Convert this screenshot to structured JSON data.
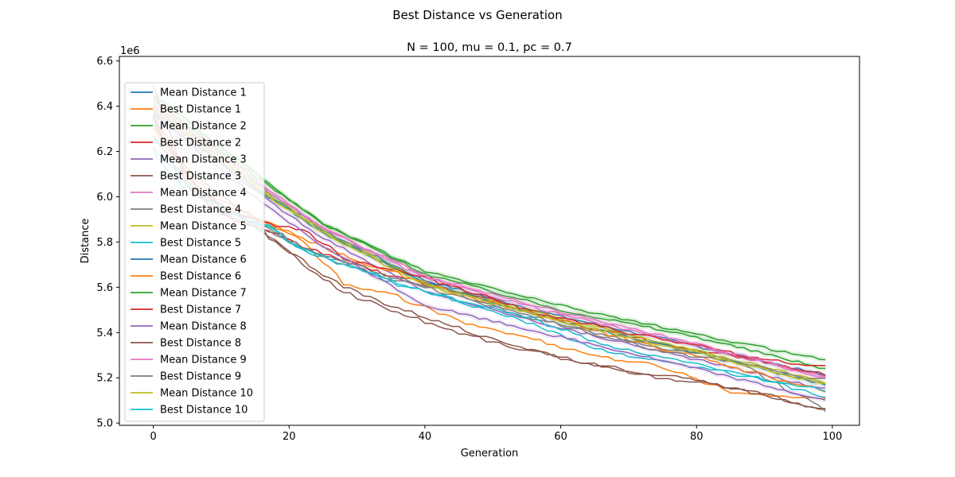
{
  "chart_data": {
    "type": "line",
    "title": "Best Distance vs Generation",
    "subtitle": "N = 100, mu = 0.1, pc = 0.7",
    "xlabel": "Generation",
    "ylabel": "Distance",
    "y_offset_label": "1e6",
    "xlim": [
      -5,
      104
    ],
    "ylim": [
      4.99,
      6.62
    ],
    "x_ticks": [
      0,
      20,
      40,
      60,
      80,
      100
    ],
    "y_ticks": [
      5.0,
      5.2,
      5.4,
      5.6,
      5.8,
      6.0,
      6.2,
      6.4,
      6.6
    ],
    "y_tick_labels": [
      "5.0",
      "5.2",
      "5.4",
      "5.6",
      "5.8",
      "6.0",
      "6.2",
      "6.4",
      "6.6"
    ],
    "grid": false,
    "legend_position": "upper-left",
    "series": [
      {
        "name": "Mean Distance 1",
        "type": "mean",
        "color": "#1f77b4",
        "x": [
          0,
          10,
          17,
          25,
          40,
          60,
          80,
          99
        ],
        "y": [
          6.4,
          6.18,
          6.02,
          5.85,
          5.63,
          5.47,
          5.34,
          5.21
        ]
      },
      {
        "name": "Best Distance 1",
        "type": "best",
        "color": "#ff7f0e",
        "x": [
          0,
          5,
          10,
          17,
          22,
          28,
          35,
          45,
          55,
          65,
          75,
          85,
          99
        ],
        "y": [
          6.3,
          6.1,
          5.98,
          5.88,
          5.8,
          5.62,
          5.57,
          5.45,
          5.38,
          5.3,
          5.25,
          5.14,
          5.11
        ]
      },
      {
        "name": "Mean Distance 2",
        "type": "mean",
        "color": "#2ca02c",
        "x": [
          0,
          10,
          17,
          25,
          40,
          60,
          80,
          99
        ],
        "y": [
          6.43,
          6.2,
          6.05,
          5.88,
          5.66,
          5.5,
          5.38,
          5.24
        ]
      },
      {
        "name": "Best Distance 2",
        "type": "best",
        "color": "#d62728",
        "x": [
          0,
          5,
          10,
          17,
          22,
          28,
          35,
          45,
          55,
          65,
          75,
          85,
          99
        ],
        "y": [
          6.5,
          6.05,
          5.92,
          5.84,
          5.78,
          5.72,
          5.65,
          5.58,
          5.5,
          5.42,
          5.35,
          5.3,
          5.25
        ]
      },
      {
        "name": "Mean Distance 3",
        "type": "mean",
        "color": "#9467bd",
        "x": [
          0,
          10,
          17,
          25,
          40,
          60,
          80,
          99
        ],
        "y": [
          6.38,
          6.15,
          5.98,
          5.82,
          5.58,
          5.42,
          5.28,
          5.15
        ]
      },
      {
        "name": "Best Distance 3",
        "type": "best",
        "color": "#8c564b",
        "x": [
          0,
          5,
          10,
          15,
          17,
          22,
          28,
          35,
          45,
          55,
          65,
          75,
          85,
          99
        ],
        "y": [
          6.32,
          6.12,
          6.0,
          5.9,
          5.82,
          5.72,
          5.6,
          5.52,
          5.42,
          5.33,
          5.26,
          5.21,
          5.16,
          5.06
        ]
      },
      {
        "name": "Mean Distance 4",
        "type": "mean",
        "color": "#e377c2",
        "x": [
          0,
          10,
          17,
          25,
          40,
          60,
          80,
          99
        ],
        "y": [
          6.4,
          6.18,
          6.02,
          5.86,
          5.64,
          5.48,
          5.34,
          5.2
        ]
      },
      {
        "name": "Best Distance 4",
        "type": "best",
        "color": "#7f7f7f",
        "x": [
          0,
          5,
          10,
          17,
          22,
          28,
          35,
          45,
          55,
          65,
          75,
          85,
          99
        ],
        "y": [
          6.28,
          6.05,
          5.95,
          5.85,
          5.77,
          5.7,
          5.64,
          5.56,
          5.47,
          5.4,
          5.33,
          5.28,
          5.06
        ]
      },
      {
        "name": "Mean Distance 5",
        "type": "mean",
        "color": "#bcbd22",
        "x": [
          0,
          10,
          17,
          25,
          40,
          60,
          80,
          99
        ],
        "y": [
          6.39,
          6.17,
          6.01,
          5.85,
          5.62,
          5.46,
          5.32,
          5.18
        ]
      },
      {
        "name": "Best Distance 5",
        "type": "best",
        "color": "#17becf",
        "x": [
          0,
          5,
          10,
          17,
          22,
          28,
          35,
          45,
          55,
          65,
          75,
          85,
          99
        ],
        "y": [
          6.22,
          6.06,
          5.96,
          5.87,
          5.76,
          5.71,
          5.62,
          5.54,
          5.45,
          5.33,
          5.27,
          5.22,
          5.12
        ]
      },
      {
        "name": "Mean Distance 6",
        "type": "mean",
        "color": "#1f77b4",
        "x": [
          0,
          10,
          17,
          25,
          40,
          60,
          80,
          99
        ],
        "y": [
          6.36,
          6.15,
          6.0,
          5.84,
          5.62,
          5.45,
          5.31,
          5.17
        ]
      },
      {
        "name": "Best Distance 6",
        "type": "best",
        "color": "#ff7f0e",
        "x": [
          0,
          5,
          10,
          17,
          22,
          28,
          35,
          45,
          55,
          65,
          75,
          85,
          99
        ],
        "y": [
          6.35,
          6.08,
          5.97,
          5.89,
          5.82,
          5.74,
          5.67,
          5.57,
          5.49,
          5.41,
          5.33,
          5.25,
          5.14
        ]
      },
      {
        "name": "Mean Distance 7",
        "type": "mean",
        "color": "#2ca02c",
        "x": [
          0,
          10,
          17,
          25,
          40,
          60,
          80,
          99
        ],
        "y": [
          6.45,
          6.22,
          6.06,
          5.88,
          5.67,
          5.52,
          5.39,
          5.28
        ]
      },
      {
        "name": "Best Distance 7",
        "type": "best",
        "color": "#d62728",
        "x": [
          0,
          5,
          10,
          17,
          22,
          28,
          35,
          45,
          55,
          65,
          75,
          85,
          99
        ],
        "y": [
          6.36,
          6.1,
          5.95,
          5.88,
          5.86,
          5.73,
          5.68,
          5.6,
          5.5,
          5.43,
          5.37,
          5.31,
          5.21
        ]
      },
      {
        "name": "Mean Distance 8",
        "type": "mean",
        "color": "#9467bd",
        "x": [
          0,
          10,
          17,
          25,
          40,
          60,
          80,
          99
        ],
        "y": [
          6.37,
          6.12,
          5.95,
          5.78,
          5.52,
          5.38,
          5.24,
          5.1
        ]
      },
      {
        "name": "Best Distance 8",
        "type": "best",
        "color": "#8c564b",
        "x": [
          0,
          5,
          10,
          17,
          22,
          28,
          35,
          45,
          55,
          65,
          75,
          85,
          99
        ],
        "y": [
          6.34,
          6.08,
          5.94,
          5.83,
          5.7,
          5.58,
          5.5,
          5.4,
          5.32,
          5.26,
          5.2,
          5.16,
          5.06
        ]
      },
      {
        "name": "Mean Distance 9",
        "type": "mean",
        "color": "#e377c2",
        "x": [
          0,
          10,
          17,
          25,
          40,
          60,
          80,
          99
        ],
        "y": [
          6.41,
          6.19,
          6.03,
          5.86,
          5.65,
          5.49,
          5.35,
          5.2
        ]
      },
      {
        "name": "Best Distance 9",
        "type": "best",
        "color": "#7f7f7f",
        "x": [
          0,
          5,
          10,
          17,
          22,
          28,
          35,
          45,
          55,
          65,
          75,
          85,
          99
        ],
        "y": [
          6.27,
          6.07,
          5.96,
          5.86,
          5.78,
          5.71,
          5.65,
          5.57,
          5.48,
          5.39,
          5.32,
          5.27,
          5.19
        ]
      },
      {
        "name": "Mean Distance 10",
        "type": "mean",
        "color": "#bcbd22",
        "x": [
          0,
          10,
          17,
          25,
          40,
          60,
          80,
          99
        ],
        "y": [
          6.39,
          6.16,
          6.0,
          5.84,
          5.61,
          5.45,
          5.31,
          5.17
        ]
      },
      {
        "name": "Best Distance 10",
        "type": "best",
        "color": "#17becf",
        "x": [
          0,
          5,
          10,
          17,
          22,
          28,
          35,
          45,
          55,
          65,
          75,
          85,
          99
        ],
        "y": [
          6.2,
          6.02,
          5.94,
          5.86,
          5.77,
          5.7,
          5.63,
          5.54,
          5.47,
          5.36,
          5.29,
          5.22,
          5.15
        ]
      }
    ]
  }
}
